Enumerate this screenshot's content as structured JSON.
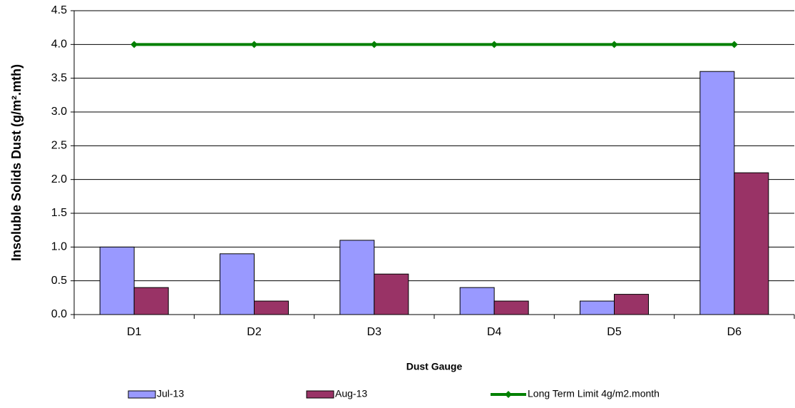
{
  "chart_data": {
    "type": "bar",
    "y_label": "Insoluble Solids Dust (g/m².mth)",
    "x_label": "Dust Gauge",
    "categories": [
      "D1",
      "D2",
      "D3",
      "D4",
      "D5",
      "D6"
    ],
    "series": [
      {
        "name": "Jul-13",
        "color": "#9999ff",
        "type": "bar",
        "values": [
          1.0,
          0.9,
          1.1,
          0.4,
          0.2,
          3.6
        ]
      },
      {
        "name": "Aug-13",
        "color": "#993366",
        "type": "bar",
        "values": [
          0.4,
          0.2,
          0.6,
          0.2,
          0.3,
          2.1
        ]
      },
      {
        "name": "Long Term Limit 4g/m2.month",
        "color": "#008000",
        "type": "line",
        "values": [
          4,
          4,
          4,
          4,
          4,
          4
        ]
      }
    ],
    "ylim": [
      0,
      4.5
    ],
    "yticks": [
      {
        "value": 0,
        "label": "0.0"
      },
      0.5,
      {
        "value": 1,
        "label": "1.0"
      },
      1.5,
      {
        "value": 2,
        "label": "2.0"
      },
      2.5,
      {
        "value": 3,
        "label": "3.0"
      },
      3.5,
      {
        "value": 4,
        "label": "4.0"
      },
      4.5
    ],
    "grid": true
  }
}
